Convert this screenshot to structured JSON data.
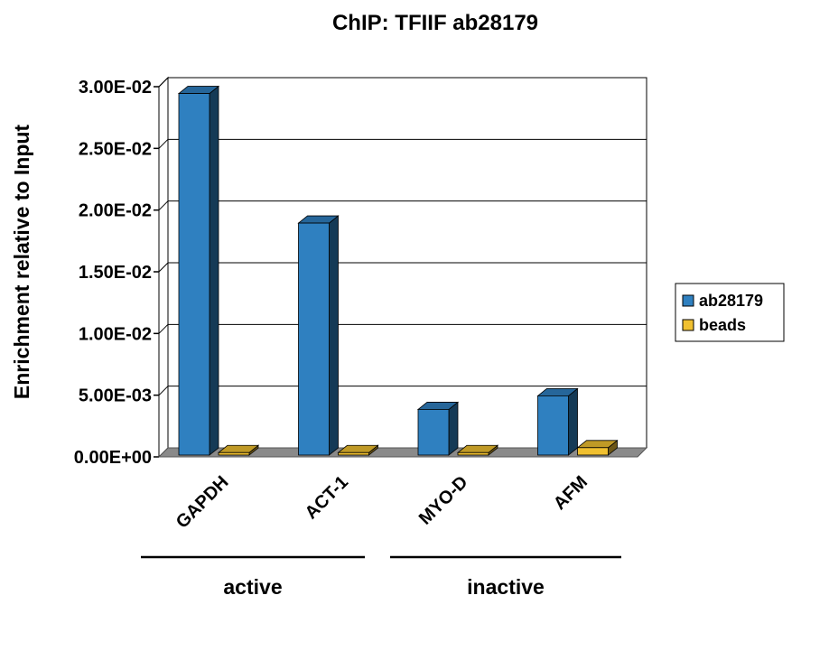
{
  "chart_data": {
    "type": "bar",
    "title": "ChIP: TFIIF ab28179",
    "ylabel": "Enrichment relative to Input",
    "xlabel": "",
    "categories": [
      "GAPDH",
      "ACT-1",
      "MYO-D",
      "AFM"
    ],
    "series": [
      {
        "name": "ab28179",
        "values": [
          0.0293,
          0.0188,
          0.0037,
          0.0048
        ],
        "color": "#2f80c0"
      },
      {
        "name": "beads",
        "values": [
          0.0002,
          0.0002,
          0.0002,
          0.0006
        ],
        "color": "#f0c030"
      }
    ],
    "ylim": [
      0,
      0.03
    ],
    "yticks": [
      "0.00E+00",
      "5.00E-03",
      "1.00E-02",
      "1.50E-02",
      "2.00E-02",
      "2.50E-02",
      "3.00E-02"
    ],
    "groups": [
      {
        "label": "active",
        "categories": [
          "GAPDH",
          "ACT-1"
        ]
      },
      {
        "label": "inactive",
        "categories": [
          "MYO-D",
          "AFM"
        ]
      }
    ],
    "grid": true,
    "legend_position": "right",
    "style": "3d-column"
  }
}
